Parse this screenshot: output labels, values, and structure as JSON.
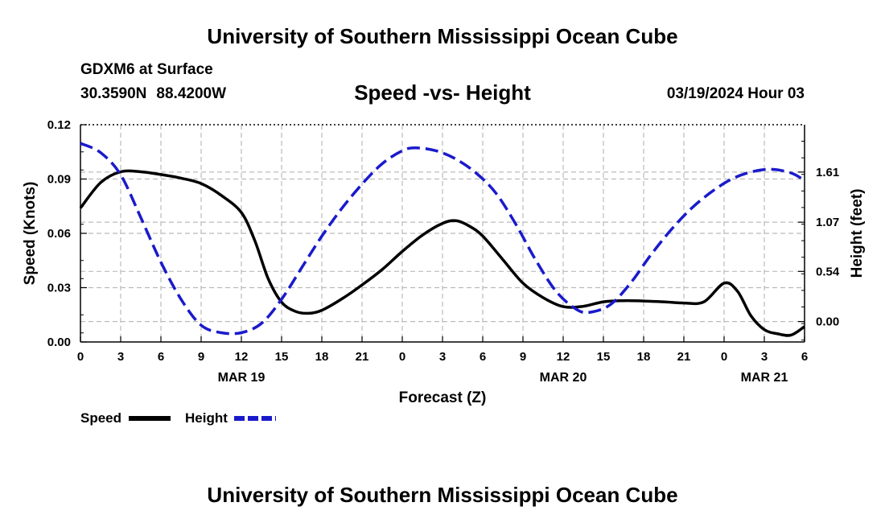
{
  "page": {
    "header_title": "University of Southern Mississippi Ocean Cube",
    "footer_title": "University of Southern Mississippi Ocean Cube",
    "station_line": "GDXM6 at Surface",
    "lat": "30.3590N",
    "lon": "88.4200W",
    "chart_title": "Speed -vs- Height",
    "datetime": "03/19/2024 Hour 03"
  },
  "legend": {
    "speed_label": "Speed",
    "height_label": "Height"
  },
  "colors": {
    "speed": "#000000",
    "height": "#1a1acc",
    "grid": "#bbbbbb"
  },
  "chart_data": {
    "type": "line",
    "title": "Speed -vs- Height",
    "xlabel": "Forecast (Z)",
    "ylabel_left": "Speed (Knots)",
    "ylabel_right": "Height (feet)",
    "x_unit": "hours since 03/19 00Z",
    "xlim": [
      0,
      54
    ],
    "ylim_left": [
      0,
      0.12
    ],
    "y_ticks_left": [
      "0.00",
      "0.03",
      "0.06",
      "0.09",
      "0.12"
    ],
    "ylim_right_feet": [
      -0.22,
      2.12
    ],
    "y_ticks_right": [
      "0.00",
      "0.54",
      "1.07",
      "1.61"
    ],
    "x_ticks": [
      "0",
      "3",
      "6",
      "9",
      "12",
      "15",
      "18",
      "21",
      "0",
      "3",
      "6",
      "9",
      "12",
      "15",
      "18",
      "21",
      "0",
      "3",
      "6"
    ],
    "date_labels": [
      {
        "label": "MAR 19",
        "x": 12
      },
      {
        "label": "MAR 20",
        "x": 36
      },
      {
        "label": "MAR 21",
        "x": 51
      }
    ],
    "grid": true,
    "legend_position": "bottom-left",
    "series": [
      {
        "name": "Speed",
        "axis": "left",
        "style": "solid",
        "x": [
          0,
          1.5,
          3,
          4.5,
          6,
          7.5,
          9,
          10.5,
          12,
          13,
          14,
          15,
          16,
          17,
          18,
          19.5,
          21,
          22.5,
          24,
          25.5,
          27,
          28,
          29,
          30,
          31.5,
          33,
          34.5,
          36,
          37.5,
          39,
          40.5,
          42,
          43.5,
          45,
          46.5,
          48,
          49,
          50,
          51,
          52,
          53,
          54
        ],
        "values": [
          0.074,
          0.088,
          0.094,
          0.094,
          0.0925,
          0.0905,
          0.0875,
          0.081,
          0.0715,
          0.056,
          0.035,
          0.022,
          0.017,
          0.0158,
          0.0175,
          0.0238,
          0.0315,
          0.04,
          0.05,
          0.059,
          0.0655,
          0.067,
          0.064,
          0.0585,
          0.0455,
          0.0325,
          0.0245,
          0.0195,
          0.0197,
          0.0222,
          0.0228,
          0.0226,
          0.0222,
          0.0215,
          0.0222,
          0.0325,
          0.028,
          0.0145,
          0.0068,
          0.0045,
          0.0038,
          0.0085
        ]
      },
      {
        "name": "Height",
        "axis": "right",
        "style": "dashed",
        "unit": "feet",
        "x": [
          0,
          1.5,
          3,
          4.5,
          6,
          7.5,
          9,
          10.5,
          12,
          13.5,
          15,
          16.5,
          18,
          19.5,
          21,
          22.5,
          24,
          25,
          26.5,
          28,
          29.5,
          31,
          32.5,
          34,
          35.5,
          37,
          38,
          39.5,
          41,
          42.5,
          44,
          45.5,
          47,
          48.5,
          50,
          51.5,
          53,
          54
        ],
        "values": [
          1.92,
          1.82,
          1.58,
          1.12,
          0.64,
          0.24,
          -0.04,
          -0.12,
          -0.12,
          -0.02,
          0.24,
          0.58,
          0.92,
          1.22,
          1.48,
          1.7,
          1.84,
          1.87,
          1.84,
          1.75,
          1.6,
          1.38,
          1.04,
          0.65,
          0.32,
          0.13,
          0.1,
          0.18,
          0.41,
          0.71,
          0.98,
          1.21,
          1.39,
          1.53,
          1.61,
          1.64,
          1.6,
          1.52
        ]
      }
    ]
  }
}
